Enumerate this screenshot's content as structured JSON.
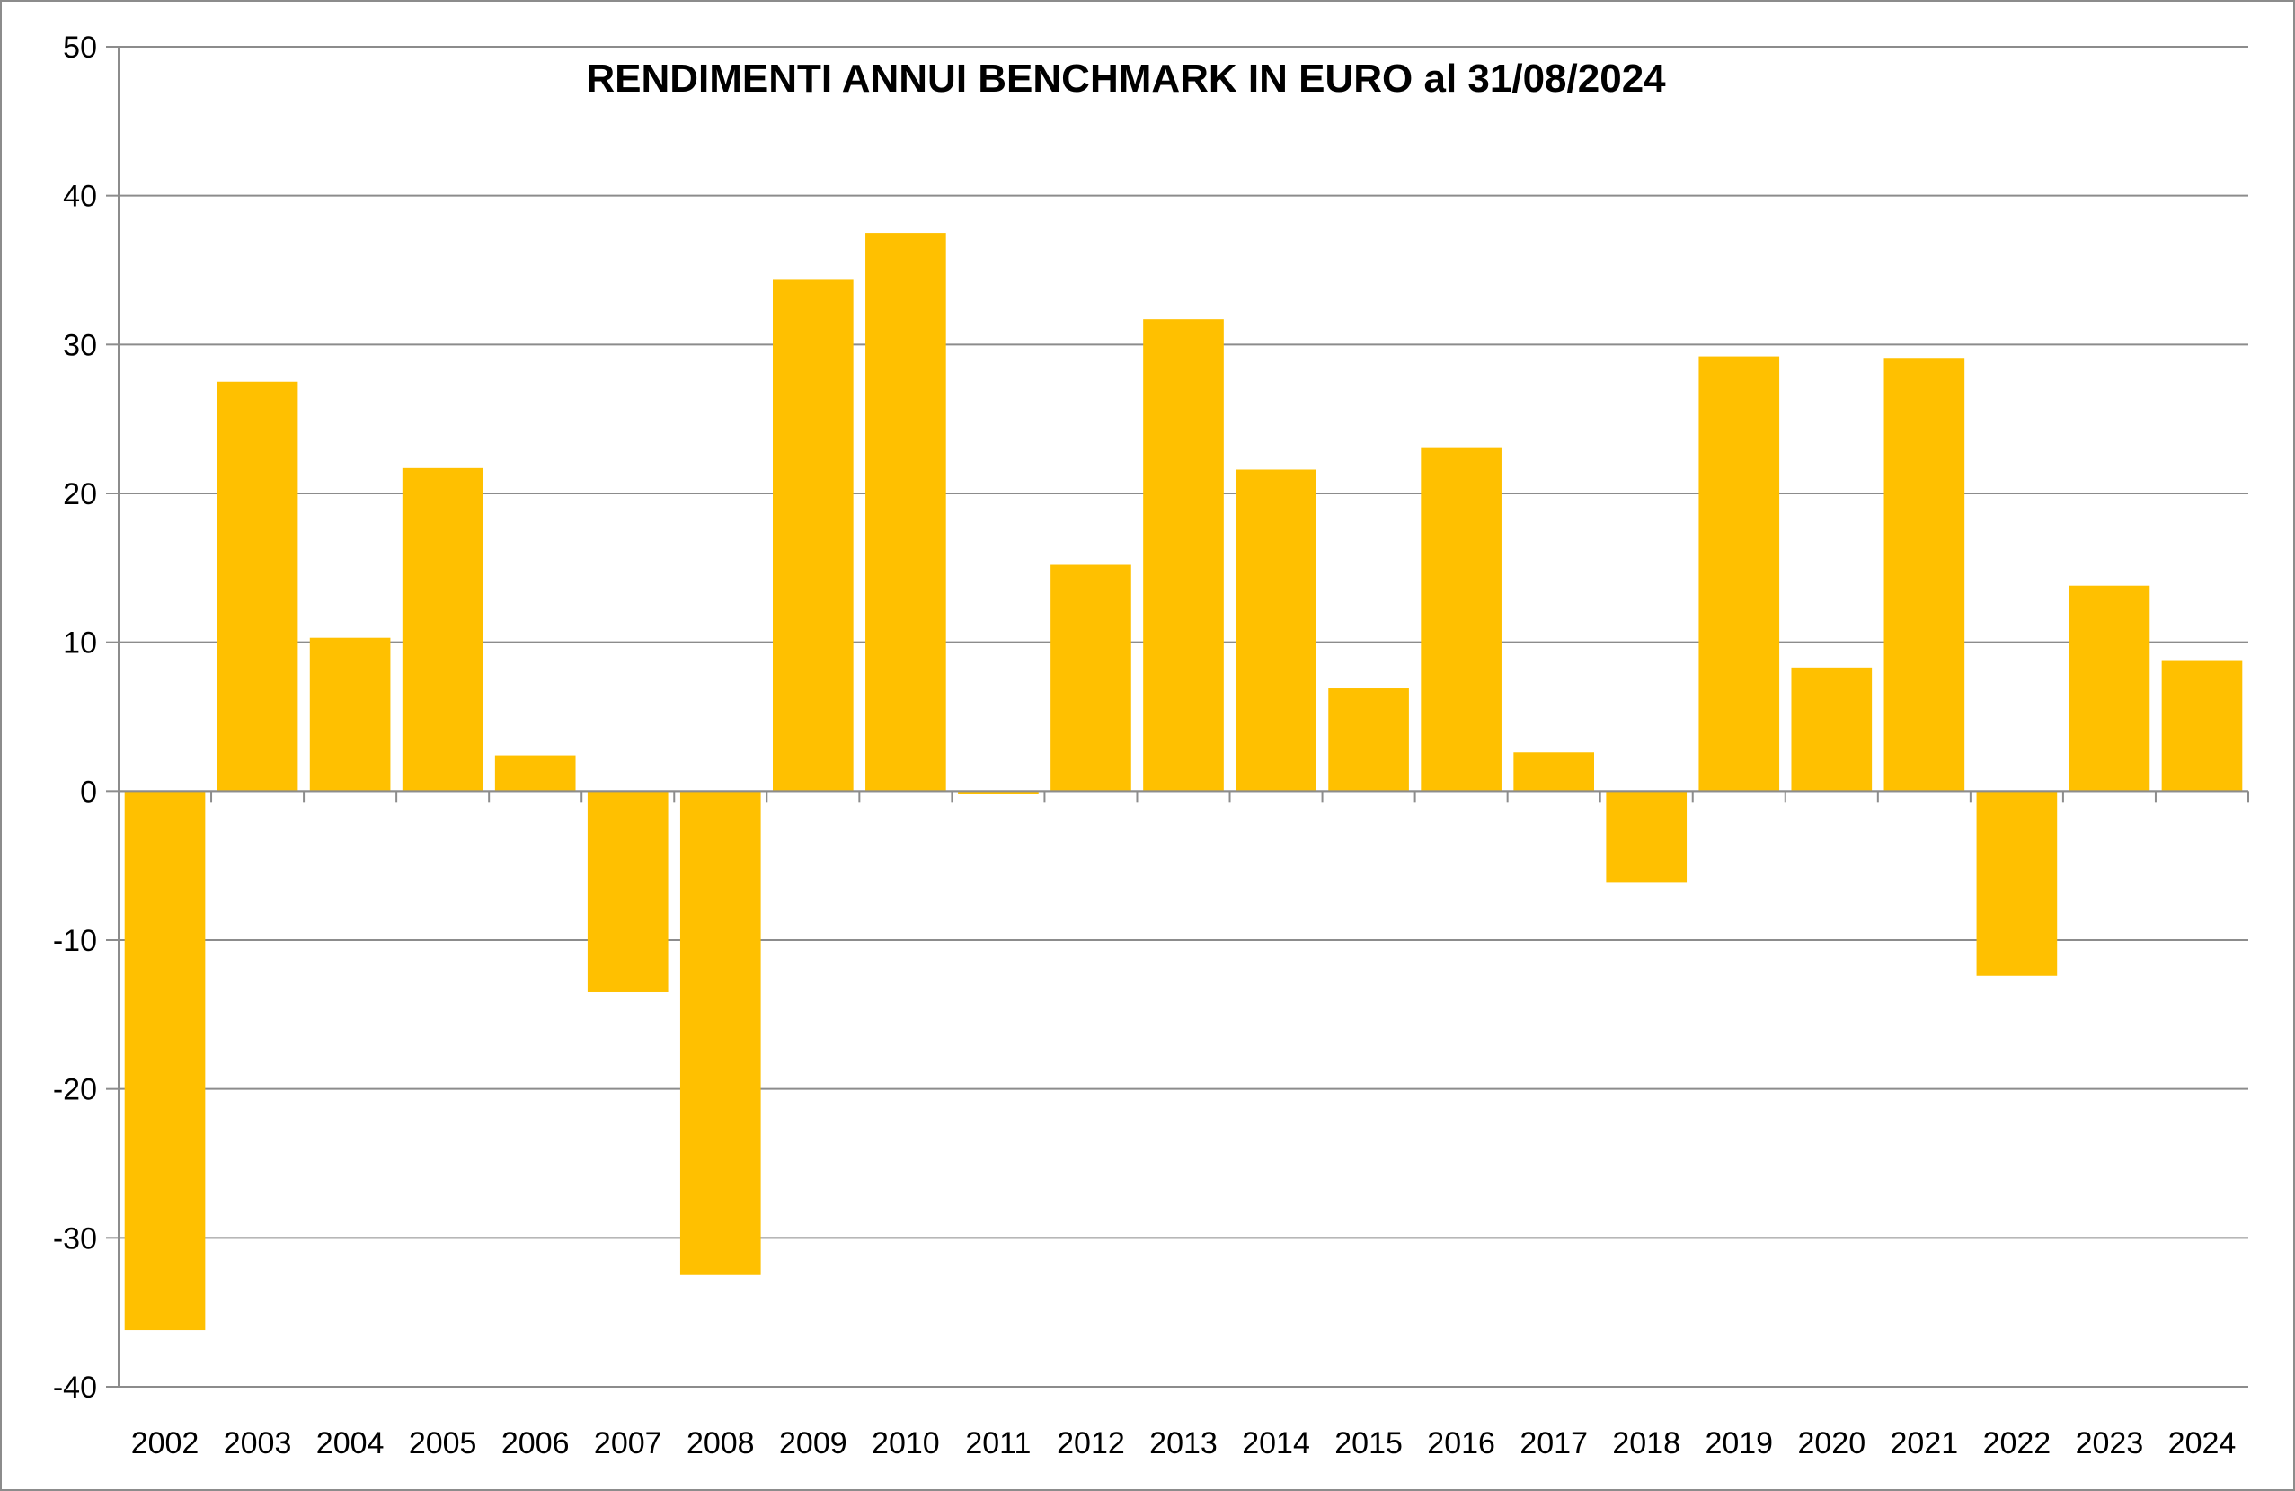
{
  "chart_data": {
    "type": "bar",
    "title": "RENDIMENTI ANNUI BENCHMARK IN EURO al 31/08/2024",
    "xlabel": "",
    "ylabel": "",
    "categories": [
      "2002",
      "2003",
      "2004",
      "2005",
      "2006",
      "2007",
      "2008",
      "2009",
      "2010",
      "2011",
      "2012",
      "2013",
      "2014",
      "2015",
      "2016",
      "2017",
      "2018",
      "2019",
      "2020",
      "2021",
      "2022",
      "2023",
      "2024"
    ],
    "values": [
      -36.2,
      27.5,
      10.3,
      21.7,
      2.4,
      -13.5,
      -32.5,
      34.4,
      37.5,
      -0.2,
      15.2,
      31.7,
      21.6,
      6.9,
      23.1,
      2.6,
      -6.1,
      29.2,
      8.3,
      29.1,
      -12.4,
      13.8,
      8.8
    ],
    "ylim": [
      -40,
      50
    ],
    "yticks": [
      "50",
      "40",
      "30",
      "20",
      "10",
      "0",
      "-10",
      "-20",
      "-30",
      "-40"
    ],
    "grid": true,
    "legend": "none",
    "colors": {
      "bar": "#FFC000",
      "grid": "#8c8c8c",
      "axis": "#8c8c8c"
    }
  }
}
